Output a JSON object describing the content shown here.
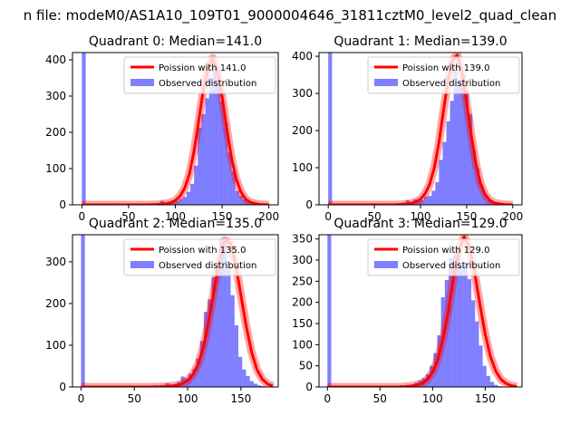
{
  "suptitle": "n file: modeM0/AS1A10_109T01_9000004646_31811cztM0_level2_quad_clean",
  "colors": {
    "fit": "#ff0000",
    "fit_halo": "#ff0000",
    "observed": "#0000ff"
  },
  "chart_data": [
    {
      "type": "bar",
      "title": "Quadrant 0: Median=141.0",
      "median": 141.0,
      "legend": [
        "Poission with 141.0",
        "Observed distribution"
      ],
      "legend_position": "top-right",
      "xlim": [
        -10,
        210
      ],
      "ylim": [
        0,
        420
      ],
      "xticks": [
        0,
        50,
        100,
        150,
        200
      ],
      "yticks": [
        0,
        100,
        200,
        300,
        400
      ],
      "bin_width": 4.1,
      "observed": {
        "x": [
          0,
          4,
          8,
          12,
          16,
          20,
          24,
          28,
          32,
          36,
          40,
          44,
          48,
          52,
          56,
          60,
          64,
          68,
          72,
          76,
          80,
          84,
          88,
          92,
          96,
          100,
          104,
          108,
          112,
          116,
          120,
          124,
          128,
          132,
          136,
          140,
          144,
          148,
          152,
          156,
          160,
          164,
          168,
          172,
          176,
          180,
          184,
          188,
          192,
          196,
          200,
          204
        ],
        "values": [
          420,
          2,
          1,
          2,
          2,
          1,
          1,
          3,
          2,
          4,
          3,
          2,
          2,
          3,
          2,
          3,
          3,
          2,
          2,
          3,
          3,
          11,
          5,
          9,
          8,
          11,
          16,
          22,
          36,
          58,
          108,
          213,
          250,
          294,
          351,
          378,
          344,
          286,
          227,
          144,
          93,
          38,
          25,
          14,
          8,
          6,
          4,
          3,
          3,
          2,
          1,
          1
        ]
      },
      "fit": {
        "x": [
          0,
          10,
          20,
          30,
          40,
          50,
          60,
          70,
          80,
          90,
          95,
          100,
          105,
          110,
          115,
          120,
          125,
          130,
          135,
          140,
          145,
          150,
          155,
          160,
          165,
          170,
          175,
          180,
          190,
          200
        ],
        "values": [
          0,
          0,
          0,
          0,
          0,
          0,
          0,
          0,
          1,
          3,
          6,
          12,
          24,
          46,
          85,
          148,
          232,
          318,
          378,
          405,
          370,
          298,
          210,
          130,
          72,
          36,
          16,
          7,
          1,
          0
        ]
      }
    },
    {
      "type": "bar",
      "title": "Quadrant 1: Median=139.0",
      "median": 139.0,
      "legend": [
        "Poission with 139.0",
        "Observed distribution"
      ],
      "legend_position": "top-right",
      "xlim": [
        -10,
        210
      ],
      "ylim": [
        0,
        410
      ],
      "xticks": [
        0,
        50,
        100,
        150,
        200
      ],
      "yticks": [
        0,
        100,
        200,
        300,
        400
      ],
      "bin_width": 4.1,
      "observed": {
        "x": [
          0,
          4,
          8,
          12,
          16,
          20,
          24,
          28,
          32,
          36,
          40,
          44,
          48,
          52,
          56,
          60,
          64,
          68,
          72,
          76,
          80,
          84,
          88,
          92,
          96,
          100,
          104,
          108,
          112,
          116,
          120,
          124,
          128,
          132,
          136,
          140,
          144,
          148,
          152,
          156,
          160,
          164,
          168,
          172,
          176,
          180,
          184,
          188,
          192,
          196,
          200,
          204
        ],
        "values": [
          410,
          3,
          2,
          3,
          1,
          2,
          1,
          2,
          3,
          2,
          3,
          2,
          4,
          3,
          2,
          4,
          3,
          3,
          4,
          5,
          6,
          12,
          8,
          14,
          10,
          13,
          22,
          24,
          38,
          61,
          121,
          169,
          225,
          280,
          361,
          336,
          349,
          307,
          244,
          146,
          98,
          54,
          28,
          12,
          6,
          4,
          3,
          2,
          2,
          1,
          1,
          1
        ]
      },
      "fit": {
        "x": [
          0,
          10,
          20,
          30,
          40,
          50,
          60,
          70,
          80,
          90,
          95,
          100,
          105,
          110,
          115,
          120,
          125,
          130,
          135,
          140,
          145,
          150,
          155,
          160,
          165,
          170,
          175,
          180,
          190,
          200
        ],
        "values": [
          0,
          0,
          0,
          0,
          0,
          0,
          0,
          0,
          1,
          4,
          8,
          15,
          30,
          56,
          100,
          168,
          255,
          338,
          392,
          403,
          355,
          275,
          188,
          112,
          58,
          28,
          12,
          5,
          1,
          0
        ]
      }
    },
    {
      "type": "bar",
      "title": "Quadrant 2: Median=135.0",
      "median": 135.0,
      "legend": [
        "Poission with 135.0",
        "Observed distribution"
      ],
      "legend_position": "top-right",
      "xlim": [
        -8,
        185
      ],
      "ylim": [
        0,
        365
      ],
      "xticks": [
        0,
        50,
        100,
        150
      ],
      "yticks": [
        0,
        100,
        200,
        300
      ],
      "bin_width": 3.6,
      "observed": {
        "x": [
          0,
          3.6,
          7.2,
          10.8,
          14.4,
          18,
          21.6,
          25.2,
          28.8,
          32.4,
          36,
          39.6,
          43.2,
          46.8,
          50.4,
          54,
          57.6,
          61.2,
          64.8,
          68.4,
          72,
          75.6,
          79.2,
          82.8,
          86.4,
          90,
          93.6,
          97.2,
          100.8,
          104.4,
          108,
          111.6,
          115.2,
          118.8,
          122.4,
          126,
          129.6,
          133.2,
          136.8,
          140.4,
          144,
          147.6,
          151.2,
          154.8,
          158.4,
          162,
          165.6,
          169.2,
          172.8,
          176.4
        ],
        "values": [
          365,
          1,
          1,
          2,
          1,
          1,
          2,
          2,
          1,
          2,
          2,
          3,
          2,
          2,
          3,
          3,
          2,
          3,
          3,
          4,
          3,
          5,
          9,
          5,
          7,
          12,
          25,
          21,
          32,
          42,
          68,
          110,
          180,
          210,
          263,
          282,
          355,
          348,
          290,
          220,
          148,
          72,
          42,
          26,
          14,
          8,
          4,
          2,
          1,
          1
        ]
      },
      "fit": {
        "x": [
          0,
          10,
          20,
          30,
          40,
          50,
          60,
          70,
          80,
          90,
          95,
          100,
          105,
          110,
          115,
          120,
          125,
          130,
          135,
          140,
          145,
          150,
          155,
          160,
          165,
          170,
          175,
          180
        ],
        "values": [
          0,
          0,
          0,
          0,
          0,
          0,
          0,
          0,
          1,
          4,
          8,
          15,
          30,
          55,
          98,
          160,
          235,
          305,
          352,
          345,
          295,
          220,
          145,
          84,
          42,
          19,
          7,
          2
        ]
      }
    },
    {
      "type": "bar",
      "title": "Quadrant 3: Median=129.0",
      "median": 129.0,
      "legend": [
        "Poission with 129.0",
        "Observed distribution"
      ],
      "legend_position": "top-right",
      "xlim": [
        -8,
        185
      ],
      "ylim": [
        0,
        360
      ],
      "xticks": [
        0,
        50,
        100,
        150
      ],
      "yticks": [
        0,
        50,
        100,
        150,
        200,
        250,
        300,
        350
      ],
      "bin_width": 3.6,
      "observed": {
        "x": [
          0,
          3.6,
          7.2,
          10.8,
          14.4,
          18,
          21.6,
          25.2,
          28.8,
          32.4,
          36,
          39.6,
          43.2,
          46.8,
          50.4,
          54,
          57.6,
          61.2,
          64.8,
          68.4,
          72,
          75.6,
          79.2,
          82.8,
          86.4,
          90,
          93.6,
          97.2,
          100.8,
          104.4,
          108,
          111.6,
          115.2,
          118.8,
          122.4,
          126,
          129.6,
          133.2,
          136.8,
          140.4,
          144,
          147.6,
          151.2,
          154.8,
          158.4,
          162,
          165.6,
          169.2,
          172.8,
          176.4
        ],
        "values": [
          360,
          1,
          1,
          1,
          2,
          1,
          1,
          2,
          2,
          1,
          2,
          2,
          2,
          3,
          2,
          3,
          3,
          2,
          3,
          4,
          3,
          5,
          6,
          10,
          16,
          21,
          30,
          50,
          80,
          122,
          212,
          253,
          305,
          312,
          318,
          286,
          295,
          255,
          205,
          155,
          98,
          50,
          26,
          12,
          5,
          2,
          1,
          1,
          1,
          0
        ]
      },
      "fit": {
        "x": [
          0,
          10,
          20,
          30,
          40,
          50,
          60,
          70,
          80,
          90,
          95,
          100,
          105,
          110,
          115,
          120,
          125,
          130,
          135,
          140,
          145,
          150,
          155,
          160,
          165,
          170,
          175,
          180
        ],
        "values": [
          0,
          0,
          0,
          0,
          0,
          0,
          0,
          0,
          2,
          8,
          18,
          35,
          65,
          115,
          180,
          260,
          325,
          355,
          330,
          270,
          195,
          125,
          72,
          38,
          18,
          8,
          3,
          1
        ]
      }
    }
  ]
}
